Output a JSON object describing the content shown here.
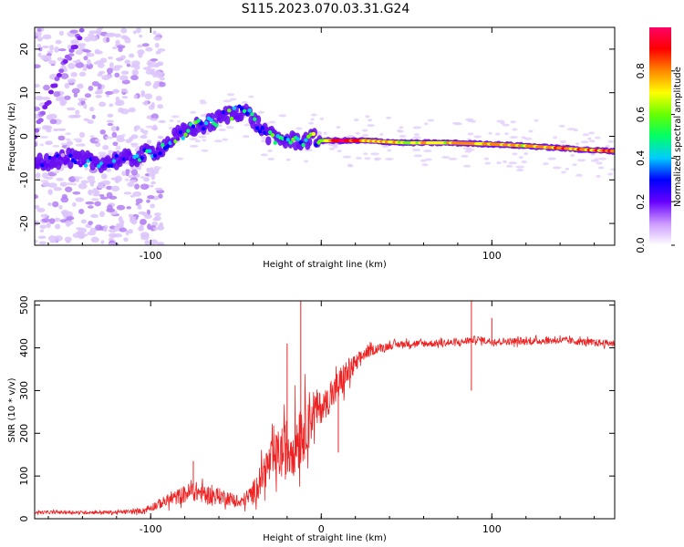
{
  "title": "S115.2023.070.03.31.G24",
  "chart_data": [
    {
      "type": "heatmap",
      "xlabel": "Height of straight line (km)",
      "ylabel": "Frequency (Hz)",
      "xlim": [
        -168,
        172
      ],
      "ylim": [
        -25,
        25
      ],
      "x_ticks": [
        -100,
        0,
        100
      ],
      "x_tick_labels": [
        "-100",
        "",
        "100"
      ],
      "y_ticks": [
        -20,
        -10,
        0,
        10,
        20
      ],
      "colorbar": {
        "label": "Normalized spectral amplitude",
        "range": [
          0,
          1
        ],
        "ticks": [
          0.0,
          0.2,
          0.4,
          0.6,
          0.8
        ],
        "colors": [
          "#ffffff",
          "#cc99ff",
          "#6600ff",
          "#0000ff",
          "#00ccff",
          "#00ff66",
          "#66ff00",
          "#ffff00",
          "#ff8800",
          "#ff0000",
          "#ff0066"
        ]
      },
      "ridge": {
        "x": [
          -168,
          -150,
          -130,
          -110,
          -95,
          -85,
          -75,
          -65,
          -55,
          -45,
          -38,
          -30,
          -20,
          -10,
          -5,
          0,
          10,
          25,
          50,
          75,
          100,
          120,
          140,
          160,
          172
        ],
        "freq": [
          -6,
          -5,
          -6,
          -5,
          -3,
          0,
          2,
          3,
          5,
          6,
          3,
          0,
          -1,
          -1,
          -0.5,
          -1,
          -1,
          -1,
          -1.5,
          -1.5,
          -1.8,
          -2.2,
          -2.7,
          -3.2,
          -3.4
        ],
        "amplitude": [
          0.2,
          0.25,
          0.3,
          0.35,
          0.4,
          0.4,
          0.45,
          0.45,
          0.45,
          0.45,
          0.4,
          0.4,
          0.45,
          0.5,
          0.55,
          0.6,
          0.9,
          0.85,
          0.7,
          0.75,
          0.8,
          0.75,
          0.85,
          0.85,
          0.85
        ]
      },
      "secondary_branch": {
        "x": [
          -168,
          -158,
          -150,
          -140
        ],
        "freq": [
          0,
          10,
          17,
          24
        ]
      }
    },
    {
      "type": "line",
      "xlabel": "Height of straight line (km)",
      "ylabel": "SNR (10 * v/v)",
      "xlim": [
        -168,
        172
      ],
      "ylim": [
        0,
        510
      ],
      "x_ticks": [
        -100,
        0,
        100
      ],
      "x_tick_labels": [
        "-100",
        "0",
        "100"
      ],
      "y_ticks": [
        0,
        100,
        200,
        300,
        400,
        500
      ],
      "color": "#ee2222",
      "series": [
        {
          "x": [
            -168,
            -150,
            -120,
            -105,
            -95,
            -85,
            -75,
            -65,
            -55,
            -48,
            -40,
            -32,
            -25,
            -18,
            -12,
            -5,
            0,
            5,
            10,
            15,
            20,
            25,
            30,
            40,
            50,
            60,
            80,
            90,
            100,
            120,
            140,
            160,
            172
          ],
          "values": [
            15,
            15,
            15,
            18,
            35,
            50,
            65,
            55,
            50,
            35,
            60,
            120,
            150,
            170,
            200,
            250,
            260,
            280,
            310,
            340,
            360,
            385,
            395,
            405,
            410,
            410,
            412,
            420,
            415,
            415,
            418,
            412,
            410
          ],
          "noise": [
            6,
            6,
            7,
            10,
            20,
            30,
            40,
            35,
            30,
            20,
            45,
            80,
            100,
            130,
            140,
            100,
            60,
            55,
            70,
            60,
            40,
            25,
            20,
            15,
            14,
            14,
            14,
            14,
            14,
            14,
            14,
            14,
            14
          ]
        }
      ],
      "spikes": [
        {
          "x": -75,
          "y": 135
        },
        {
          "x": -12,
          "y": 510
        },
        {
          "x": -20,
          "y": 410
        },
        {
          "x": 10,
          "y": 155
        },
        {
          "x": 88,
          "y": 510
        },
        {
          "x": 88,
          "y": 300
        },
        {
          "x": 100,
          "y": 470
        }
      ]
    }
  ]
}
